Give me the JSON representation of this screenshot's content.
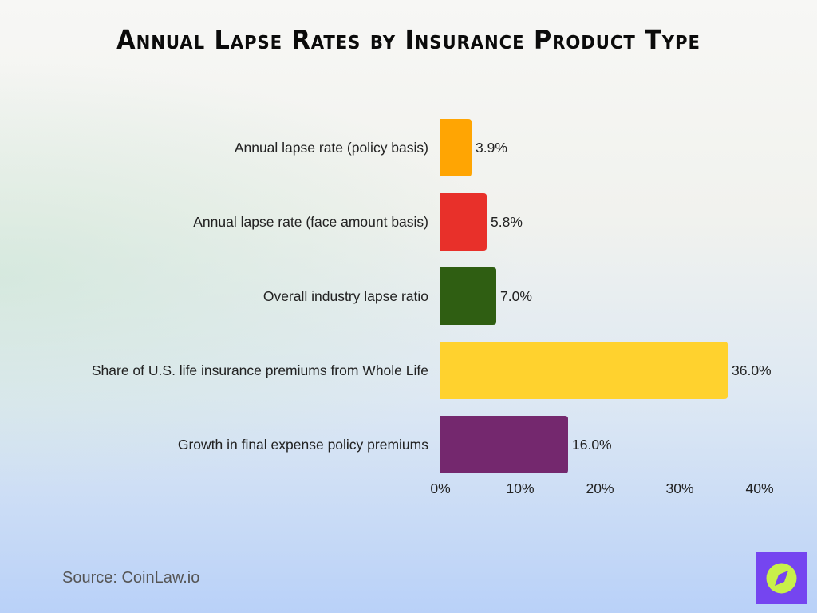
{
  "chart_data": {
    "type": "bar",
    "orientation": "horizontal",
    "title": "Annual Lapse Rates by Insurance Product Type",
    "categories": [
      "Annual lapse rate (policy basis)",
      "Annual lapse rate (face amount basis)",
      "Overall industry lapse ratio",
      "Share of U.S. life insurance premiums from Whole Life",
      "Growth in final expense policy premiums"
    ],
    "values": [
      3.9,
      5.8,
      7.0,
      36.0,
      16.0
    ],
    "data_labels": [
      "3.9%",
      "5.8%",
      "7.0%",
      "36.0%",
      "16.0%"
    ],
    "colors": [
      "#FFA503",
      "#E8302A",
      "#2F5E12",
      "#FFD22E",
      "#74286E"
    ],
    "xlim": [
      0,
      40
    ],
    "xticks": [
      0,
      10,
      20,
      30,
      40
    ],
    "xtick_labels": [
      "0%",
      "10%",
      "20%",
      "30%",
      "40%"
    ],
    "xlabel": "",
    "ylabel": "",
    "grid": false,
    "legend": "none"
  },
  "source": "Source: CoinLaw.io",
  "logo": {
    "icon": "compass-icon",
    "bg": "#7545F0",
    "fg": "#C8F04A"
  }
}
